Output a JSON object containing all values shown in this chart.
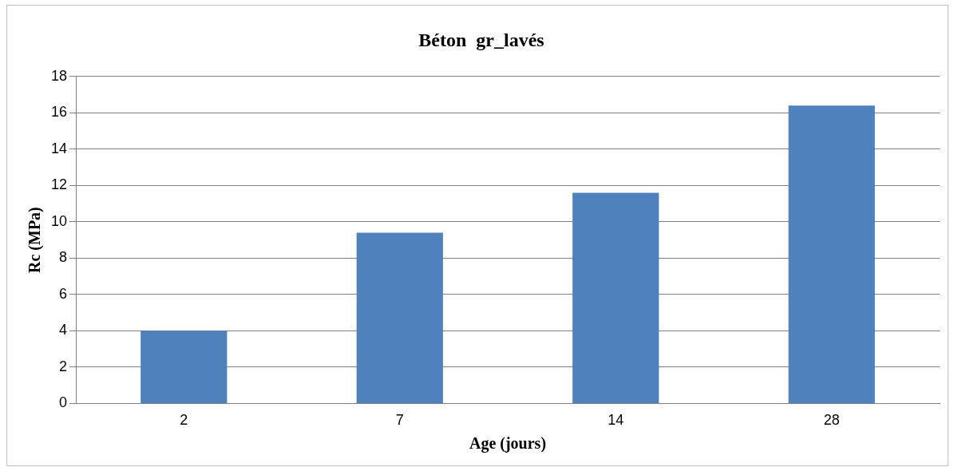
{
  "chart_data": {
    "type": "bar",
    "title": "Béton  gr_lavés",
    "xlabel": "Age (jours)",
    "ylabel": "Rc (MPa)",
    "categories": [
      "2",
      "7",
      "14",
      "28"
    ],
    "series": [
      {
        "color": "#4f81bd",
        "values": [
          4.0,
          9.4,
          11.6,
          16.4
        ]
      }
    ],
    "ylim": [
      0,
      18
    ],
    "yticks": [
      0,
      2,
      4,
      6,
      8,
      10,
      12,
      14,
      16,
      18
    ],
    "grid": "y",
    "legend": false
  }
}
